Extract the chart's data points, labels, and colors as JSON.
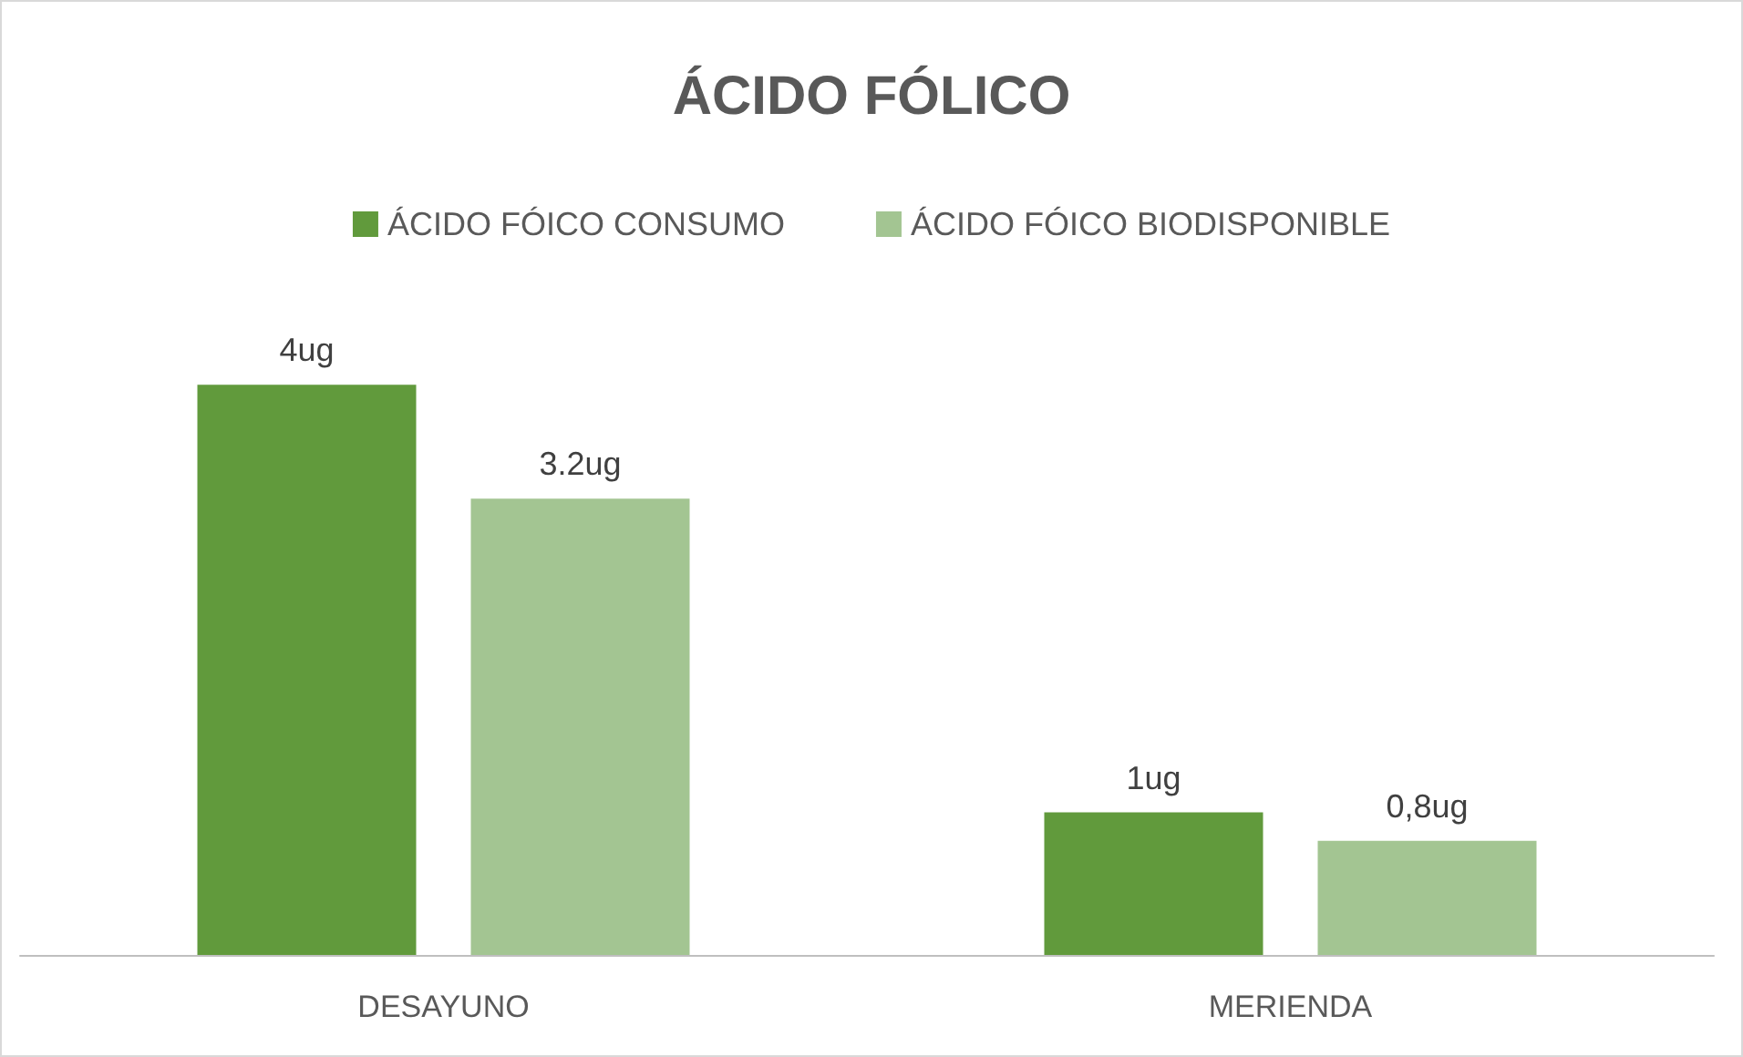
{
  "chart_data": {
    "type": "bar",
    "title": "ÁCIDO FÓLICO",
    "categories": [
      "DESAYUNO",
      "MERIENDA"
    ],
    "series": [
      {
        "name": "ÁCIDO FÓICO CONSUMO",
        "color": "#619a3c",
        "values": [
          4,
          1
        ],
        "value_labels": [
          "4ug",
          "1ug"
        ]
      },
      {
        "name": "ÁCIDO FÓICO BIODISPONIBLE",
        "color": "#a3c592",
        "values": [
          3.2,
          0.8
        ],
        "value_labels": [
          "3.2ug",
          "0,8ug"
        ]
      }
    ],
    "grid": false,
    "legend": "top"
  }
}
